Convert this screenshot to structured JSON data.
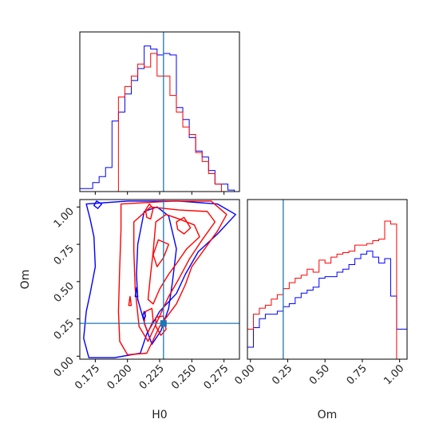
{
  "chart_data": {
    "type": "corner",
    "parameters": [
      "H0",
      "Om"
    ],
    "colors": {
      "blue_series": "#0000ff",
      "red_series": "#ff0000",
      "truth_line": "#1f77b4",
      "frame": "#000000"
    },
    "truth": {
      "H0": 0.228,
      "Om": 0.22
    },
    "h0_axis": {
      "label": "H0",
      "range": [
        0.163,
        0.287
      ],
      "ticks": [
        0.175,
        0.2,
        0.225,
        0.25,
        0.275
      ],
      "tick_labels": [
        "0.175",
        "0.200",
        "0.225",
        "0.250",
        "0.275"
      ]
    },
    "om_axis": {
      "label": "Om",
      "range": [
        -0.02,
        1.05
      ],
      "ticks": [
        0.0,
        0.25,
        0.5,
        0.75,
        1.0
      ],
      "tick_labels": [
        "0.00",
        "0.25",
        "0.50",
        "0.75",
        "1.00"
      ]
    },
    "h0_histogram": {
      "bin_edges": [
        0.163,
        0.168,
        0.173,
        0.178,
        0.183,
        0.188,
        0.193,
        0.198,
        0.203,
        0.208,
        0.213,
        0.218,
        0.223,
        0.228,
        0.233,
        0.238,
        0.243,
        0.248,
        0.253,
        0.258,
        0.263,
        0.268,
        0.273,
        0.278,
        0.283,
        0.287
      ],
      "series": [
        {
          "color": "blue",
          "values": [
            0.02,
            0.02,
            0.06,
            0.1,
            0.16,
            0.47,
            0.53,
            0.65,
            0.74,
            0.82,
            0.97,
            0.95,
            0.91,
            0.92,
            0.91,
            0.56,
            0.48,
            0.36,
            0.27,
            0.23,
            0.14,
            0.05,
            0.05,
            0.01,
            0.0
          ]
        },
        {
          "color": "red",
          "values": [
            0.0,
            0.0,
            0.0,
            0.0,
            0.0,
            0.0,
            0.63,
            0.7,
            0.77,
            0.85,
            0.83,
            0.92,
            0.77,
            0.77,
            0.64,
            0.53,
            0.43,
            0.38,
            0.26,
            0.2,
            0.12,
            0.05,
            0.0,
            0.0,
            0.0
          ]
        }
      ]
    },
    "om_histogram": {
      "bin_edges": [
        -0.02,
        0.02,
        0.06,
        0.1,
        0.14,
        0.18,
        0.22,
        0.26,
        0.3,
        0.34,
        0.38,
        0.42,
        0.46,
        0.5,
        0.54,
        0.58,
        0.62,
        0.66,
        0.7,
        0.74,
        0.78,
        0.82,
        0.86,
        0.9,
        0.94,
        0.98,
        1.02,
        1.05
      ],
      "series": [
        {
          "color": "blue",
          "values": [
            0.08,
            0.21,
            0.27,
            0.3,
            0.3,
            0.32,
            0.35,
            0.37,
            0.41,
            0.44,
            0.46,
            0.48,
            0.54,
            0.55,
            0.55,
            0.58,
            0.6,
            0.63,
            0.67,
            0.7,
            0.72,
            0.68,
            0.64,
            0.67,
            0.42,
            0.2,
            0.2
          ]
        },
        {
          "color": "red",
          "values": [
            0.2,
            0.3,
            0.34,
            0.36,
            0.4,
            0.43,
            0.47,
            0.51,
            0.54,
            0.56,
            0.6,
            0.58,
            0.66,
            0.64,
            0.68,
            0.7,
            0.71,
            0.72,
            0.76,
            0.76,
            0.77,
            0.79,
            0.8,
            0.92,
            0.9,
            0.0,
            0.0
          ]
        }
      ]
    },
    "contours_2d": [
      {
        "color": "blue",
        "points": [
          [
            0.168,
            1.02
          ],
          [
            0.2,
            1.04
          ],
          [
            0.24,
            1.04
          ],
          [
            0.27,
            1.02
          ],
          [
            0.284,
            0.95
          ],
          [
            0.27,
            0.82
          ],
          [
            0.255,
            0.7
          ],
          [
            0.245,
            0.55
          ],
          [
            0.238,
            0.42
          ],
          [
            0.225,
            0.3
          ],
          [
            0.215,
            0.15
          ],
          [
            0.21,
            0.02
          ],
          [
            0.19,
            -0.01
          ],
          [
            0.17,
            -0.01
          ],
          [
            0.166,
            0.12
          ],
          [
            0.168,
            0.3
          ],
          [
            0.171,
            0.42
          ],
          [
            0.175,
            0.6
          ],
          [
            0.174,
            0.8
          ],
          [
            0.171,
            0.92
          ]
        ]
      },
      {
        "color": "blue",
        "points": [
          [
            0.213,
            0.97
          ],
          [
            0.223,
            1.0
          ],
          [
            0.232,
            0.94
          ],
          [
            0.238,
            0.72
          ],
          [
            0.235,
            0.5
          ],
          [
            0.232,
            0.32
          ],
          [
            0.226,
            0.17
          ],
          [
            0.219,
            0.08
          ],
          [
            0.214,
            0.2
          ],
          [
            0.208,
            0.38
          ],
          [
            0.207,
            0.55
          ],
          [
            0.208,
            0.75
          ]
        ]
      },
      {
        "color": "red",
        "points": [
          [
            0.195,
            1.02
          ],
          [
            0.235,
            1.04
          ],
          [
            0.265,
            1.04
          ],
          [
            0.277,
            0.95
          ],
          [
            0.27,
            0.84
          ],
          [
            0.26,
            0.72
          ],
          [
            0.25,
            0.6
          ],
          [
            0.245,
            0.48
          ],
          [
            0.238,
            0.35
          ],
          [
            0.225,
            0.2
          ],
          [
            0.215,
            0.02
          ],
          [
            0.2,
            0.01
          ],
          [
            0.194,
            0.1
          ],
          [
            0.193,
            0.3
          ],
          [
            0.194,
            0.6
          ],
          [
            0.195,
            0.85
          ]
        ]
      },
      {
        "color": "red",
        "points": [
          [
            0.205,
            0.9
          ],
          [
            0.218,
            1.0
          ],
          [
            0.24,
            0.98
          ],
          [
            0.262,
            0.97
          ],
          [
            0.268,
            0.9
          ],
          [
            0.258,
            0.78
          ],
          [
            0.248,
            0.65
          ],
          [
            0.24,
            0.52
          ],
          [
            0.232,
            0.4
          ],
          [
            0.224,
            0.25
          ],
          [
            0.216,
            0.1
          ],
          [
            0.209,
            0.2
          ],
          [
            0.206,
            0.45
          ],
          [
            0.205,
            0.7
          ]
        ]
      },
      {
        "color": "red",
        "points": [
          [
            0.222,
            0.9
          ],
          [
            0.23,
            0.95
          ],
          [
            0.24,
            0.92
          ],
          [
            0.252,
            0.88
          ],
          [
            0.256,
            0.8
          ],
          [
            0.246,
            0.72
          ],
          [
            0.238,
            0.62
          ],
          [
            0.232,
            0.55
          ],
          [
            0.225,
            0.45
          ],
          [
            0.22,
            0.35
          ],
          [
            0.216,
            0.38
          ],
          [
            0.218,
            0.55
          ],
          [
            0.22,
            0.7
          ]
        ]
      },
      {
        "color": "red",
        "points": [
          [
            0.224,
            0.78
          ],
          [
            0.232,
            0.75
          ],
          [
            0.228,
            0.66
          ],
          [
            0.223,
            0.6
          ],
          [
            0.22,
            0.68
          ]
        ]
      },
      {
        "color": "red",
        "points": [
          [
            0.238,
            0.9
          ],
          [
            0.244,
            0.93
          ],
          [
            0.249,
            0.86
          ],
          [
            0.244,
            0.82
          ],
          [
            0.239,
            0.85
          ]
        ]
      },
      {
        "color": "red",
        "points": [
          [
            0.214,
            0.98
          ],
          [
            0.217,
            1.02
          ],
          [
            0.22,
            0.99
          ],
          [
            0.218,
            0.92
          ],
          [
            0.215,
            0.93
          ]
        ]
      },
      {
        "color": "red",
        "points": [
          [
            0.214,
            0.3
          ],
          [
            0.219,
            0.32
          ],
          [
            0.22,
            0.24
          ],
          [
            0.216,
            0.16
          ],
          [
            0.213,
            0.22
          ]
        ]
      },
      {
        "color": "red",
        "points": [
          [
            0.222,
            0.26
          ],
          [
            0.228,
            0.27
          ],
          [
            0.23,
            0.18
          ],
          [
            0.226,
            0.14
          ],
          [
            0.222,
            0.2
          ]
        ]
      },
      {
        "color": "red",
        "points": [
          [
            0.201,
            0.34
          ],
          [
            0.202,
            0.4
          ],
          [
            0.203,
            0.34
          ]
        ]
      },
      {
        "color": "blue",
        "points": [
          [
            0.206,
            0.4
          ],
          [
            0.207,
            0.46
          ],
          [
            0.208,
            0.4
          ]
        ]
      },
      {
        "color": "blue",
        "points": [
          [
            0.174,
            1.01
          ],
          [
            0.176,
            1.04
          ],
          [
            0.18,
            1.02
          ],
          [
            0.177,
            0.99
          ]
        ]
      },
      {
        "color": "blue",
        "points": [
          [
            0.212,
            0.27
          ],
          [
            0.213,
            0.3
          ],
          [
            0.214,
            0.27
          ],
          [
            0.213,
            0.25
          ]
        ]
      }
    ]
  }
}
